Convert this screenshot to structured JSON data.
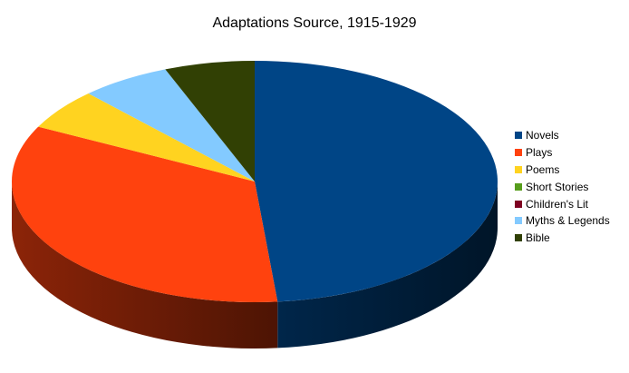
{
  "chart_data": {
    "type": "pie",
    "title": "Adaptations Source, 1915-1929",
    "legend_position": "right",
    "style": "3d",
    "slices": [
      {
        "label": "Novels",
        "value": 48.5,
        "color": "#004586"
      },
      {
        "label": "Plays",
        "value": 34.0,
        "color": "#ff420e"
      },
      {
        "label": "Poems",
        "value": 5.5,
        "color": "#ffd320"
      },
      {
        "label": "Short Stories",
        "value": 0,
        "color": "#579d1c"
      },
      {
        "label": "Children's Lit",
        "value": 0,
        "color": "#7e0021"
      },
      {
        "label": "Myths & Legends",
        "value": 6.0,
        "color": "#83caff"
      },
      {
        "label": "Bible",
        "value": 6.0,
        "color": "#314004"
      }
    ]
  }
}
